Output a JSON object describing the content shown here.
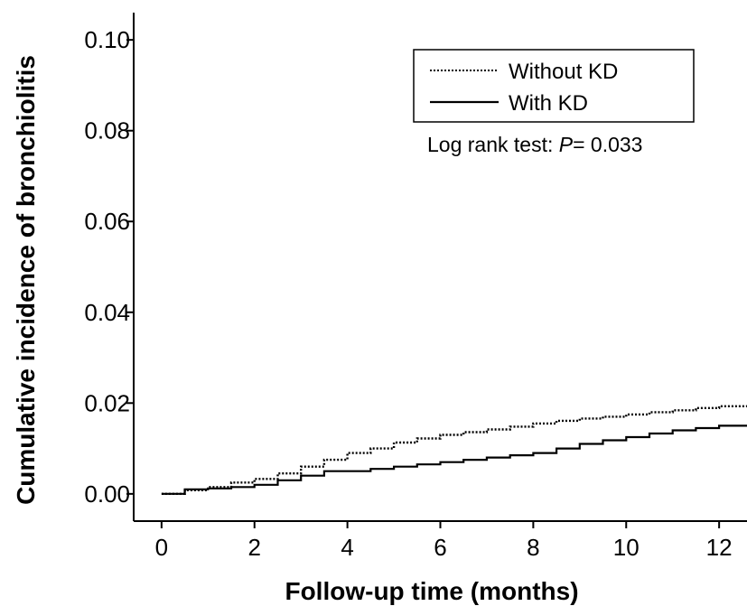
{
  "chart_data": {
    "type": "line",
    "title": "",
    "xlabel": "Follow-up time (months)",
    "ylabel": "Cumulative incidence of bronchiolitis",
    "xlim": [
      -0.6,
      12.6
    ],
    "ylim": [
      -0.006,
      0.106
    ],
    "x_ticks": [
      0,
      2,
      4,
      6,
      8,
      10,
      12
    ],
    "x_tick_labels": [
      "0",
      "2",
      "4",
      "6",
      "8",
      "10",
      "12"
    ],
    "y_ticks": [
      0.0,
      0.02,
      0.04,
      0.06,
      0.08,
      0.1
    ],
    "y_tick_labels": [
      "0.00",
      "0.02",
      "0.04",
      "0.06",
      "0.08",
      "0.10"
    ],
    "grid": false,
    "legend_position": "top-right",
    "annotation": {
      "prefix": "Log rank test: ",
      "italic": "P",
      "suffix": "= 0.033"
    },
    "series": [
      {
        "name": "Without KD",
        "style": "dotted",
        "color": "#000000",
        "x": [
          0,
          0.5,
          1,
          1.5,
          2,
          2.5,
          3,
          3.5,
          4,
          4.5,
          5,
          5.5,
          6,
          6.5,
          7,
          7.5,
          8,
          8.5,
          9,
          9.5,
          10,
          10.5,
          11,
          11.5,
          12,
          12.6
        ],
        "y": [
          0.0,
          0.0008,
          0.0015,
          0.0025,
          0.0033,
          0.0045,
          0.006,
          0.0075,
          0.009,
          0.01,
          0.0113,
          0.0122,
          0.013,
          0.0136,
          0.0142,
          0.0148,
          0.0155,
          0.0161,
          0.0166,
          0.017,
          0.0175,
          0.018,
          0.0184,
          0.0189,
          0.0193,
          0.0195
        ]
      },
      {
        "name": "With KD",
        "style": "solid",
        "color": "#000000",
        "x": [
          0,
          0.5,
          1,
          1.5,
          2,
          2.5,
          3,
          3.5,
          4,
          4.5,
          5,
          5.5,
          6,
          6.5,
          7,
          7.5,
          8,
          8.5,
          9,
          9.5,
          10,
          10.5,
          11,
          11.5,
          12,
          12.6
        ],
        "y": [
          0.0,
          0.001,
          0.0012,
          0.0015,
          0.002,
          0.003,
          0.004,
          0.005,
          0.005,
          0.0055,
          0.006,
          0.0065,
          0.007,
          0.0075,
          0.008,
          0.0085,
          0.009,
          0.01,
          0.011,
          0.0118,
          0.0125,
          0.0133,
          0.014,
          0.0145,
          0.015,
          0.015
        ]
      }
    ]
  }
}
